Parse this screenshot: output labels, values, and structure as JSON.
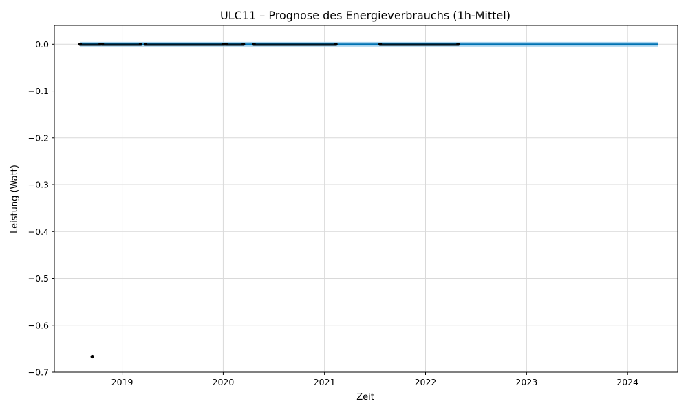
{
  "chart_data": {
    "type": "line",
    "title": "ULC11 – Prognose des Energieverbrauchs (1h-Mittel)",
    "xlabel": "Zeit",
    "ylabel": "Leistung (Watt)",
    "xlim": [
      "2018-05-01",
      "2024-06-30"
    ],
    "ylim": [
      -0.7,
      0.04
    ],
    "grid": true,
    "x_ticks": [
      {
        "date": "2019-01-01",
        "label": "2019"
      },
      {
        "date": "2020-01-01",
        "label": "2020"
      },
      {
        "date": "2021-01-01",
        "label": "2021"
      },
      {
        "date": "2022-01-01",
        "label": "2022"
      },
      {
        "date": "2023-01-01",
        "label": "2023"
      },
      {
        "date": "2024-01-01",
        "label": "2024"
      }
    ],
    "y_ticks": [
      {
        "value": 0.0,
        "label": "0.0"
      },
      {
        "value": -0.1,
        "label": "−0.1"
      },
      {
        "value": -0.2,
        "label": "−0.2"
      },
      {
        "value": -0.3,
        "label": "−0.3"
      },
      {
        "value": -0.4,
        "label": "−0.4"
      },
      {
        "value": -0.5,
        "label": "−0.5"
      },
      {
        "value": -0.6,
        "label": "−0.6"
      },
      {
        "value": -0.7,
        "label": "−0.7"
      }
    ],
    "forecast": {
      "x": [
        "2018-08-01",
        "2024-04-20"
      ],
      "y": [
        0.0,
        0.0
      ],
      "lower": [
        -0.005,
        -0.005
      ],
      "upper": [
        0.005,
        0.005
      ]
    },
    "observed_segments": [
      {
        "start": "2018-08-01",
        "end": "2018-10-15",
        "value": 0.0
      },
      {
        "start": "2018-10-20",
        "end": "2019-03-10",
        "value": 0.0
      },
      {
        "start": "2019-03-25",
        "end": "2020-01-05",
        "value": 0.0
      },
      {
        "start": "2020-01-10",
        "end": "2020-03-15",
        "value": 0.0
      },
      {
        "start": "2020-04-20",
        "end": "2021-02-12",
        "value": 0.0
      },
      {
        "start": "2021-07-20",
        "end": "2022-04-30",
        "value": 0.0
      }
    ],
    "outliers": [
      {
        "x": "2018-09-15",
        "y": -0.667
      }
    ],
    "colors": {
      "forecast_line": "#0072b2",
      "uncertainty_band": "#89c4e8",
      "observed": "#000000"
    }
  }
}
